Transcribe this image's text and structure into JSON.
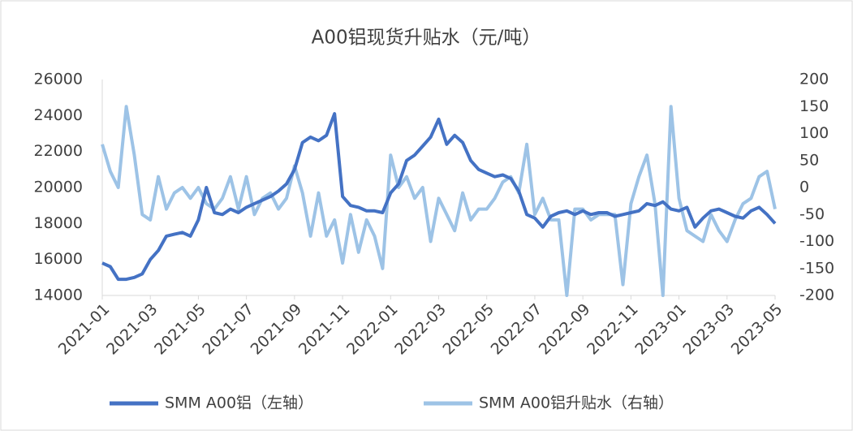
{
  "chart_data": {
    "type": "line",
    "title": "A00铝现货升贴水（元/吨）",
    "categories": [
      "2021-01",
      null,
      null,
      null,
      null,
      null,
      "2021-03",
      null,
      null,
      null,
      null,
      null,
      "2021-05",
      null,
      null,
      null,
      null,
      null,
      "2021-07",
      null,
      null,
      null,
      null,
      null,
      "2021-09",
      null,
      null,
      null,
      null,
      null,
      "2021-11",
      null,
      null,
      null,
      null,
      null,
      "2022-01",
      null,
      null,
      null,
      null,
      null,
      "2022-03",
      null,
      null,
      null,
      null,
      null,
      "2022-05",
      null,
      null,
      null,
      null,
      null,
      "2022-07",
      null,
      null,
      null,
      null,
      null,
      "2022-09",
      null,
      null,
      null,
      null,
      null,
      "2022-11",
      null,
      null,
      null,
      null,
      null,
      "2023-01",
      null,
      null,
      null,
      null,
      null,
      "2023-03",
      null,
      null,
      null,
      null,
      null,
      "2023-05"
    ],
    "series": [
      {
        "name": "SMM A00铝（左轴）",
        "color": "#4472c4",
        "values": [
          15800,
          15600,
          14900,
          14900,
          15000,
          15200,
          16000,
          16500,
          17300,
          17400,
          17500,
          17300,
          18200,
          20000,
          18600,
          18500,
          18800,
          18600,
          18900,
          19100,
          19300,
          19500,
          19800,
          20200,
          21000,
          22500,
          22800,
          22600,
          22900,
          24100,
          19500,
          19000,
          18900,
          18700,
          18700,
          18600,
          19700,
          20200,
          21500,
          21800,
          22300,
          22800,
          23800,
          22400,
          22900,
          22500,
          21500,
          21000,
          20800,
          20600,
          20700,
          20500,
          19800,
          18500,
          18300,
          17800,
          18400,
          18600,
          18700,
          18500,
          18700,
          18500,
          18600,
          18600,
          18400,
          18500,
          18600,
          18700,
          19100,
          19000,
          19200,
          18800,
          18700,
          18900,
          17800,
          18300,
          18700,
          18800,
          18600,
          18400,
          18300,
          18700,
          18900,
          18500,
          18000
        ]
      },
      {
        "name": "SMM A00铝升贴水（右轴）",
        "color": "#9dc3e6",
        "axis": "y2",
        "values": [
          80,
          30,
          0,
          150,
          60,
          -50,
          -60,
          20,
          -40,
          -10,
          0,
          -20,
          0,
          -30,
          -40,
          -20,
          20,
          -40,
          20,
          -50,
          -20,
          -10,
          -40,
          -20,
          40,
          -10,
          -90,
          -10,
          -90,
          -60,
          -140,
          -50,
          -120,
          -60,
          -90,
          -150,
          60,
          0,
          20,
          -20,
          0,
          -100,
          -20,
          -50,
          -80,
          -10,
          -60,
          -40,
          -40,
          -20,
          10,
          20,
          -10,
          80,
          -50,
          -20,
          -60,
          -60,
          -200,
          -40,
          -40,
          -60,
          -50,
          -50,
          -50,
          -180,
          -30,
          20,
          60,
          -30,
          -200,
          150,
          -20,
          -80,
          -90,
          -100,
          -50,
          -80,
          -100,
          -60,
          -30,
          -20,
          20,
          30,
          -40
        ]
      }
    ],
    "ylim": [
      14000,
      26000
    ],
    "yticks": [
      14000,
      16000,
      18000,
      20000,
      22000,
      24000,
      26000
    ],
    "y2lim": [
      -200,
      200
    ],
    "y2ticks": [
      -200,
      -150,
      -100,
      -50,
      0,
      50,
      100,
      150,
      200
    ],
    "grid": false,
    "legend": "bottom"
  }
}
